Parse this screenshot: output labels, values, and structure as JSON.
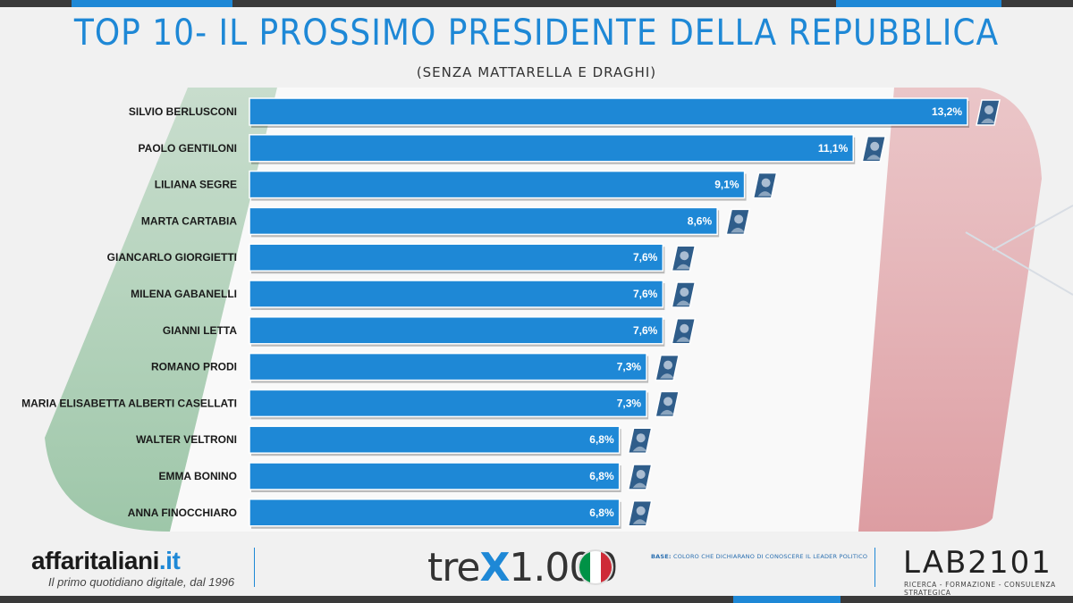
{
  "title": "TOP 10- IL PROSSIMO PRESIDENTE DELLA REPUBBLICA",
  "subtitle": "(SENZA MATTARELLA E DRAGHI)",
  "colors": {
    "bar": "#1e88d6",
    "flag_green": "#009246",
    "flag_white": "#ffffff",
    "flag_red": "#ce2b37",
    "title": "#1e88d6"
  },
  "chart_data": {
    "type": "bar",
    "orientation": "horizontal",
    "categories": [
      "SILVIO BERLUSCONI",
      "PAOLO GENTILONI",
      "LILIANA SEGRE",
      "MARTA CARTABIA",
      "GIANCARLO GIORGIETTI",
      "MILENA GABANELLI",
      "GIANNI LETTA",
      "ROMANO PRODI",
      "MARIA ELISABETTA ALBERTI CASELLATI",
      "WALTER VELTRONI",
      "EMMA BONINO",
      "ANNA FINOCCHIARO"
    ],
    "values": [
      13.2,
      11.1,
      9.1,
      8.6,
      7.6,
      7.6,
      7.6,
      7.3,
      7.3,
      6.8,
      6.8,
      6.8
    ],
    "value_labels": [
      "13,2%",
      "11,1%",
      "9,1%",
      "8,6%",
      "7,6%",
      "7,6%",
      "7,6%",
      "7,3%",
      "7,3%",
      "6,8%",
      "6,8%",
      "6,8%"
    ],
    "title": "TOP 10- IL PROSSIMO PRESIDENTE DELLA REPUBBLICA",
    "subtitle": "(SENZA MATTARELLA E DRAGHI)",
    "xlim": [
      0,
      13.2
    ],
    "grid": false,
    "legend": "none"
  },
  "footer": {
    "aff_logo_main": "affaritaliani",
    "aff_logo_tld": ".it",
    "aff_tagline": "Il primo quotidiano digitale, dal 1996",
    "trex_logo_a": "tre",
    "trex_logo_x": "X",
    "trex_logo_b": "1.000",
    "base_label": "BASE:",
    "base_text": "COLORO CHE DICHIARANO DI CONOSCERE IL LEADER POLITICO",
    "lab_logo": "LAB2101",
    "lab_tagline": "RICERCA - FORMAZIONE - CONSULENZA STRATEGICA"
  }
}
